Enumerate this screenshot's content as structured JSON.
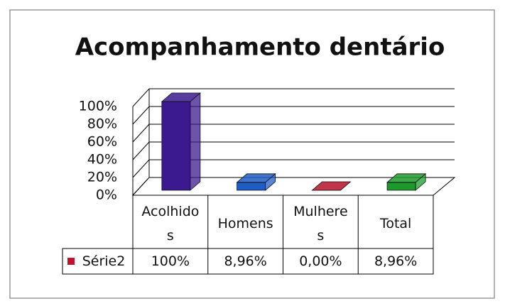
{
  "chart_data": {
    "type": "bar3d",
    "title": "Acompanhamento dentário",
    "categories": [
      "Acolhidos",
      "Homens",
      "Mulheres",
      "Total"
    ],
    "series": [
      {
        "name": "Série2",
        "color": "#c0142e",
        "colors": [
          "#3b1a8f",
          "#1f5cc4",
          "#b5122c",
          "#1e9a2c"
        ],
        "values": [
          100,
          8.96,
          0,
          8.96
        ],
        "value_labels": [
          "100%",
          "8,96%",
          "0,00%",
          "8,96%"
        ]
      }
    ],
    "ylim": [
      0,
      100
    ],
    "yticks": [
      {
        "value": 0,
        "label": "0%"
      },
      {
        "value": 20,
        "label": "20%"
      },
      {
        "value": 40,
        "label": "40%"
      },
      {
        "value": 60,
        "label": "60%"
      },
      {
        "value": 80,
        "label": "80%"
      },
      {
        "value": 100,
        "label": "100%"
      }
    ],
    "grid": true
  }
}
